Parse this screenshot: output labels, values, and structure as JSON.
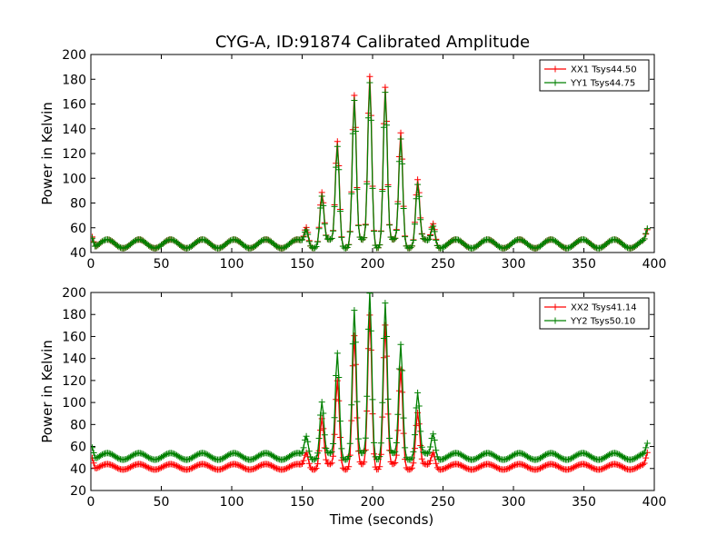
{
  "title": "CYG-A, ID:91874 Calibrated Amplitude",
  "colors": {
    "red": "#ff0000",
    "green": "#008000"
  },
  "chart_data": [
    {
      "type": "line",
      "title": "CYG-A, ID:91874 Calibrated Amplitude",
      "xlabel": "",
      "ylabel": "Power in Kelvin",
      "xlim": [
        0,
        400
      ],
      "ylim": [
        40,
        200
      ],
      "xticks": [
        0,
        50,
        100,
        150,
        200,
        250,
        300,
        350,
        400
      ],
      "yticks": [
        40,
        60,
        80,
        100,
        120,
        140,
        160,
        180,
        200
      ],
      "legend": "top-right",
      "series": [
        {
          "name": "XX1 Tsys44.50",
          "color": "#ff0000",
          "baseline": 47,
          "ripple": 3.5,
          "peaks": [
            [
              153,
              61
            ],
            [
              164,
              88
            ],
            [
              175,
              130
            ],
            [
              187,
              166
            ],
            [
              198,
              183
            ],
            [
              209,
              173
            ],
            [
              220,
              137
            ],
            [
              232,
              98
            ],
            [
              243,
              64
            ]
          ],
          "edges": [
            [
              1,
              56
            ],
            [
              395,
              55
            ]
          ]
        },
        {
          "name": "YY1 Tsys44.75",
          "color": "#008000",
          "baseline": 47,
          "ripple": 3.5,
          "peaks": [
            [
              153,
              59
            ],
            [
              164,
              85
            ],
            [
              175,
              126
            ],
            [
              187,
              162
            ],
            [
              198,
              178
            ],
            [
              209,
              169
            ],
            [
              220,
              132
            ],
            [
              232,
              94
            ],
            [
              243,
              62
            ]
          ],
          "edges": [
            [
              1,
              55
            ],
            [
              395,
              56
            ]
          ]
        }
      ]
    },
    {
      "type": "line",
      "title": "",
      "xlabel": "Time (seconds)",
      "ylabel": "Power in Kelvin",
      "xlim": [
        0,
        400
      ],
      "ylim": [
        20,
        200
      ],
      "xticks": [
        0,
        50,
        100,
        150,
        200,
        250,
        300,
        350,
        400
      ],
      "yticks": [
        20,
        40,
        60,
        80,
        100,
        120,
        140,
        160,
        180,
        200
      ],
      "legend": "top-right",
      "series": [
        {
          "name": "XX2 Tsys41.14",
          "color": "#ff0000",
          "baseline": 41.5,
          "ripple": 2.5,
          "peaks": [
            [
              153,
              55
            ],
            [
              164,
              85
            ],
            [
              175,
              120
            ],
            [
              187,
              160
            ],
            [
              198,
              180
            ],
            [
              209,
              170
            ],
            [
              220,
              130
            ],
            [
              232,
              90
            ],
            [
              243,
              55
            ]
          ],
          "edges": [
            [
              1,
              52
            ],
            [
              395,
              52
            ]
          ]
        },
        {
          "name": "YY2 Tsys50.10",
          "color": "#008000",
          "baseline": 51,
          "ripple": 3,
          "peaks": [
            [
              153,
              70
            ],
            [
              164,
              100
            ],
            [
              175,
              145
            ],
            [
              187,
              183
            ],
            [
              198,
              200
            ],
            [
              209,
              190
            ],
            [
              220,
              153
            ],
            [
              232,
              108
            ],
            [
              243,
              72
            ]
          ],
          "edges": [
            [
              1,
              62
            ],
            [
              395,
              60
            ]
          ]
        }
      ]
    }
  ]
}
